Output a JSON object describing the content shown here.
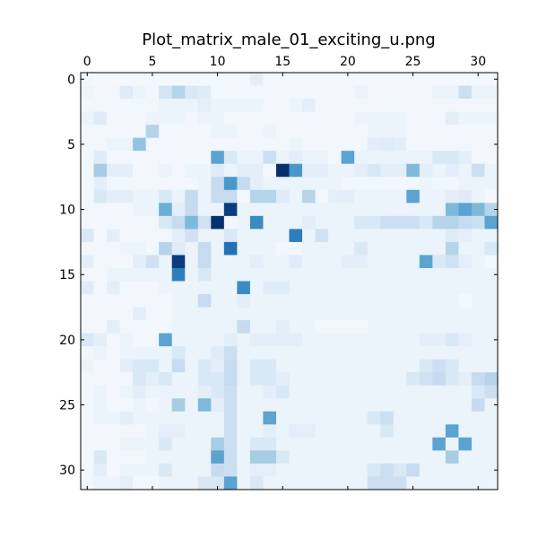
{
  "chart_data": {
    "type": "heatmap",
    "title": "Plot_matrix_male_01_exciting_u.png",
    "xlabel": "",
    "ylabel": "",
    "colormap": "Blues",
    "x_axis_position": "top",
    "xlim": [
      -0.5,
      31.5
    ],
    "ylim": [
      31.5,
      -0.5
    ],
    "x_ticks": [
      0,
      5,
      10,
      15,
      20,
      25,
      30
    ],
    "y_ticks": [
      0,
      5,
      10,
      15,
      20,
      25,
      30
    ],
    "vmin": 0,
    "vmax": 1,
    "rows": 32,
    "cols": 32,
    "values": [
      [
        0.03,
        0.02,
        0.02,
        0.02,
        0.02,
        0.02,
        0.02,
        0.02,
        0.02,
        0.02,
        0.02,
        0.02,
        0.02,
        0.1,
        0.02,
        0.02,
        0.02,
        0.02,
        0.02,
        0.02,
        0.02,
        0.02,
        0.02,
        0.02,
        0.02,
        0.02,
        0.02,
        0.02,
        0.02,
        0.02,
        0.02,
        0.02
      ],
      [
        0.05,
        0.03,
        0.03,
        0.12,
        0.06,
        0.03,
        0.18,
        0.3,
        0.15,
        0.12,
        0.03,
        0.03,
        0.03,
        0.03,
        0.03,
        0.03,
        0.03,
        0.03,
        0.03,
        0.03,
        0.03,
        0.06,
        0.03,
        0.03,
        0.03,
        0.03,
        0.03,
        0.06,
        0.06,
        0.22,
        0.06,
        0.06
      ],
      [
        0.03,
        0.03,
        0.03,
        0.03,
        0.03,
        0.03,
        0.06,
        0.06,
        0.06,
        0.1,
        0.06,
        0.06,
        0.06,
        0.06,
        0.03,
        0.03,
        0.06,
        0.1,
        0.03,
        0.03,
        0.03,
        0.03,
        0.03,
        0.03,
        0.03,
        0.03,
        0.03,
        0.03,
        0.03,
        0.03,
        0.03,
        0.03
      ],
      [
        0.06,
        0.12,
        0.03,
        0.03,
        0.03,
        0.06,
        0.06,
        0.06,
        0.03,
        0.06,
        0.06,
        0.03,
        0.03,
        0.03,
        0.03,
        0.03,
        0.03,
        0.03,
        0.03,
        0.03,
        0.03,
        0.06,
        0.06,
        0.06,
        0.06,
        0.03,
        0.03,
        0.03,
        0.1,
        0.06,
        0.06,
        0.06
      ],
      [
        0.03,
        0.03,
        0.03,
        0.03,
        0.03,
        0.3,
        0.03,
        0.03,
        0.03,
        0.03,
        0.06,
        0.06,
        0.03,
        0.03,
        0.06,
        0.03,
        0.03,
        0.03,
        0.03,
        0.03,
        0.03,
        0.03,
        0.06,
        0.06,
        0.06,
        0.03,
        0.03,
        0.03,
        0.03,
        0.03,
        0.03,
        0.03
      ],
      [
        0.03,
        0.03,
        0.06,
        0.06,
        0.4,
        0.03,
        0.03,
        0.03,
        0.03,
        0.03,
        0.03,
        0.03,
        0.03,
        0.03,
        0.03,
        0.03,
        0.06,
        0.03,
        0.03,
        0.03,
        0.03,
        0.03,
        0.1,
        0.12,
        0.1,
        0.03,
        0.03,
        0.03,
        0.03,
        0.03,
        0.03,
        0.03
      ],
      [
        0.03,
        0.12,
        0.03,
        0.03,
        0.03,
        0.03,
        0.03,
        0.03,
        0.03,
        0.03,
        0.55,
        0.15,
        0.06,
        0.06,
        0.22,
        0.06,
        0.1,
        0.06,
        0.06,
        0.03,
        0.55,
        0.06,
        0.06,
        0.06,
        0.06,
        0.06,
        0.06,
        0.15,
        0.15,
        0.1,
        0.03,
        0.03
      ],
      [
        0.03,
        0.35,
        0.1,
        0.1,
        0.03,
        0.03,
        0.06,
        0.03,
        0.06,
        0.06,
        0.12,
        0.06,
        0.1,
        0.1,
        0.03,
        1.0,
        0.6,
        0.1,
        0.1,
        0.06,
        0.06,
        0.1,
        0.15,
        0.1,
        0.1,
        0.45,
        0.1,
        0.06,
        0.1,
        0.06,
        0.22,
        0.06
      ],
      [
        0.03,
        0.1,
        0.03,
        0.03,
        0.03,
        0.03,
        0.03,
        0.03,
        0.03,
        0.06,
        0.25,
        0.6,
        0.25,
        0.1,
        0.06,
        0.06,
        0.06,
        0.06,
        0.06,
        0.06,
        0.03,
        0.03,
        0.03,
        0.03,
        0.03,
        0.03,
        0.06,
        0.03,
        0.03,
        0.06,
        0.06,
        0.06
      ],
      [
        0.03,
        0.15,
        0.1,
        0.1,
        0.06,
        0.06,
        0.15,
        0.06,
        0.25,
        0.06,
        0.25,
        0.25,
        0.03,
        0.3,
        0.3,
        0.12,
        0.06,
        0.3,
        0.03,
        0.1,
        0.1,
        0.06,
        0.06,
        0.06,
        0.06,
        0.55,
        0.06,
        0.06,
        0.1,
        0.12,
        0.06,
        0.03
      ],
      [
        0.03,
        0.03,
        0.03,
        0.03,
        0.06,
        0.06,
        0.5,
        0.1,
        0.25,
        0.06,
        0.06,
        0.95,
        0.06,
        0.06,
        0.06,
        0.06,
        0.06,
        0.06,
        0.06,
        0.06,
        0.06,
        0.06,
        0.06,
        0.06,
        0.06,
        0.06,
        0.06,
        0.06,
        0.45,
        0.55,
        0.45,
        0.3
      ],
      [
        0.03,
        0.03,
        0.03,
        0.03,
        0.03,
        0.03,
        0.15,
        0.25,
        0.45,
        0.2,
        1.0,
        0.03,
        0.06,
        0.65,
        0.06,
        0.06,
        0.06,
        0.1,
        0.06,
        0.06,
        0.06,
        0.15,
        0.15,
        0.22,
        0.22,
        0.22,
        0.15,
        0.3,
        0.3,
        0.25,
        0.22,
        0.55
      ],
      [
        0.15,
        0.03,
        0.1,
        0.03,
        0.03,
        0.03,
        0.03,
        0.1,
        0.2,
        0.06,
        0.06,
        0.15,
        0.06,
        0.06,
        0.06,
        0.06,
        0.7,
        0.06,
        0.2,
        0.06,
        0.06,
        0.06,
        0.06,
        0.06,
        0.06,
        0.06,
        0.06,
        0.06,
        0.12,
        0.1,
        0.06,
        0.06
      ],
      [
        0.03,
        0.03,
        0.03,
        0.06,
        0.06,
        0.03,
        0.3,
        0.12,
        0.06,
        0.25,
        0.06,
        0.75,
        0.06,
        0.06,
        0.06,
        0.03,
        0.03,
        0.06,
        0.06,
        0.06,
        0.06,
        0.15,
        0.06,
        0.06,
        0.06,
        0.06,
        0.06,
        0.06,
        0.3,
        0.06,
        0.06,
        0.15
      ],
      [
        0.1,
        0.03,
        0.03,
        0.03,
        0.1,
        0.2,
        0.06,
        0.95,
        0.06,
        0.25,
        0.06,
        0.06,
        0.06,
        0.1,
        0.06,
        0.06,
        0.12,
        0.06,
        0.06,
        0.06,
        0.1,
        0.1,
        0.06,
        0.06,
        0.06,
        0.06,
        0.55,
        0.15,
        0.2,
        0.1,
        0.06,
        0.03
      ],
      [
        0.03,
        0.03,
        0.06,
        0.06,
        0.06,
        0.06,
        0.06,
        0.7,
        0.06,
        0.15,
        0.06,
        0.06,
        0.06,
        0.06,
        0.06,
        0.06,
        0.06,
        0.06,
        0.06,
        0.06,
        0.06,
        0.06,
        0.06,
        0.06,
        0.06,
        0.06,
        0.06,
        0.06,
        0.06,
        0.06,
        0.06,
        0.06
      ],
      [
        0.12,
        0.03,
        0.1,
        0.03,
        0.03,
        0.03,
        0.06,
        0.06,
        0.06,
        0.06,
        0.06,
        0.06,
        0.65,
        0.06,
        0.12,
        0.12,
        0.06,
        0.06,
        0.06,
        0.06,
        0.06,
        0.06,
        0.06,
        0.06,
        0.06,
        0.06,
        0.06,
        0.06,
        0.06,
        0.06,
        0.06,
        0.06
      ],
      [
        0.03,
        0.03,
        0.03,
        0.03,
        0.03,
        0.03,
        0.03,
        0.06,
        0.06,
        0.25,
        0.06,
        0.06,
        0.1,
        0.06,
        0.06,
        0.06,
        0.06,
        0.06,
        0.06,
        0.06,
        0.06,
        0.06,
        0.06,
        0.06,
        0.06,
        0.06,
        0.06,
        0.06,
        0.06,
        0.03,
        0.06,
        0.06
      ],
      [
        0.03,
        0.03,
        0.03,
        0.03,
        0.1,
        0.03,
        0.03,
        0.06,
        0.06,
        0.06,
        0.06,
        0.06,
        0.06,
        0.06,
        0.06,
        0.06,
        0.06,
        0.06,
        0.06,
        0.06,
        0.06,
        0.06,
        0.06,
        0.06,
        0.06,
        0.06,
        0.06,
        0.06,
        0.06,
        0.06,
        0.06,
        0.06
      ],
      [
        0.03,
        0.03,
        0.1,
        0.03,
        0.03,
        0.03,
        0.03,
        0.06,
        0.06,
        0.06,
        0.06,
        0.06,
        0.25,
        0.06,
        0.06,
        0.1,
        0.06,
        0.06,
        0.03,
        0.03,
        0.03,
        0.03,
        0.06,
        0.06,
        0.06,
        0.06,
        0.06,
        0.06,
        0.06,
        0.06,
        0.06,
        0.06
      ],
      [
        0.15,
        0.1,
        0.03,
        0.06,
        0.03,
        0.03,
        0.55,
        0.06,
        0.06,
        0.06,
        0.06,
        0.1,
        0.06,
        0.1,
        0.1,
        0.1,
        0.1,
        0.06,
        0.06,
        0.06,
        0.06,
        0.06,
        0.06,
        0.06,
        0.06,
        0.06,
        0.1,
        0.1,
        0.15,
        0.1,
        0.06,
        0.06
      ],
      [
        0.03,
        0.06,
        0.03,
        0.06,
        0.06,
        0.06,
        0.06,
        0.15,
        0.06,
        0.06,
        0.12,
        0.22,
        0.06,
        0.06,
        0.06,
        0.06,
        0.06,
        0.06,
        0.06,
        0.06,
        0.06,
        0.06,
        0.06,
        0.06,
        0.06,
        0.06,
        0.06,
        0.06,
        0.06,
        0.06,
        0.06,
        0.06
      ],
      [
        0.06,
        0.03,
        0.03,
        0.1,
        0.15,
        0.15,
        0.06,
        0.25,
        0.06,
        0.15,
        0.1,
        0.25,
        0.06,
        0.15,
        0.15,
        0.06,
        0.06,
        0.06,
        0.06,
        0.06,
        0.06,
        0.06,
        0.06,
        0.06,
        0.06,
        0.06,
        0.15,
        0.22,
        0.15,
        0.06,
        0.06,
        0.06
      ],
      [
        0.03,
        0.03,
        0.03,
        0.03,
        0.15,
        0.1,
        0.15,
        0.06,
        0.06,
        0.15,
        0.15,
        0.25,
        0.06,
        0.15,
        0.15,
        0.1,
        0.06,
        0.06,
        0.06,
        0.06,
        0.06,
        0.06,
        0.06,
        0.06,
        0.06,
        0.15,
        0.2,
        0.25,
        0.15,
        0.1,
        0.25,
        0.3
      ],
      [
        0.03,
        0.06,
        0.03,
        0.06,
        0.1,
        0.06,
        0.06,
        0.06,
        0.06,
        0.1,
        0.15,
        0.22,
        0.06,
        0.06,
        0.1,
        0.15,
        0.06,
        0.06,
        0.06,
        0.06,
        0.06,
        0.06,
        0.06,
        0.06,
        0.06,
        0.06,
        0.06,
        0.06,
        0.06,
        0.06,
        0.15,
        0.22
      ],
      [
        0.03,
        0.06,
        0.03,
        0.03,
        0.06,
        0.03,
        0.06,
        0.35,
        0.06,
        0.45,
        0.1,
        0.22,
        0.06,
        0.06,
        0.06,
        0.06,
        0.06,
        0.06,
        0.06,
        0.06,
        0.06,
        0.06,
        0.06,
        0.06,
        0.06,
        0.06,
        0.06,
        0.06,
        0.06,
        0.06,
        0.25,
        0.06
      ],
      [
        0.03,
        0.06,
        0.06,
        0.1,
        0.06,
        0.06,
        0.06,
        0.06,
        0.06,
        0.06,
        0.06,
        0.22,
        0.06,
        0.06,
        0.55,
        0.06,
        0.06,
        0.06,
        0.06,
        0.06,
        0.06,
        0.06,
        0.15,
        0.22,
        0.06,
        0.06,
        0.06,
        0.06,
        0.06,
        0.06,
        0.06,
        0.06
      ],
      [
        0.03,
        0.03,
        0.03,
        0.03,
        0.03,
        0.06,
        0.1,
        0.1,
        0.06,
        0.06,
        0.06,
        0.22,
        0.06,
        0.06,
        0.1,
        0.06,
        0.1,
        0.1,
        0.06,
        0.06,
        0.06,
        0.06,
        0.06,
        0.15,
        0.06,
        0.06,
        0.06,
        0.06,
        0.55,
        0.06,
        0.06,
        0.06
      ],
      [
        0.03,
        0.03,
        0.03,
        0.06,
        0.06,
        0.06,
        0.15,
        0.06,
        0.06,
        0.06,
        0.35,
        0.22,
        0.06,
        0.15,
        0.15,
        0.06,
        0.06,
        0.06,
        0.06,
        0.06,
        0.06,
        0.06,
        0.06,
        0.06,
        0.06,
        0.06,
        0.06,
        0.55,
        0.06,
        0.55,
        0.06,
        0.06
      ],
      [
        0.03,
        0.15,
        0.03,
        0.03,
        0.03,
        0.06,
        0.06,
        0.06,
        0.06,
        0.06,
        0.55,
        0.22,
        0.06,
        0.35,
        0.35,
        0.15,
        0.06,
        0.06,
        0.06,
        0.06,
        0.06,
        0.06,
        0.06,
        0.06,
        0.06,
        0.06,
        0.06,
        0.06,
        0.35,
        0.06,
        0.06,
        0.06
      ],
      [
        0.03,
        0.1,
        0.03,
        0.06,
        0.06,
        0.06,
        0.15,
        0.06,
        0.06,
        0.06,
        0.25,
        0.22,
        0.06,
        0.1,
        0.1,
        0.06,
        0.06,
        0.06,
        0.06,
        0.06,
        0.06,
        0.06,
        0.15,
        0.22,
        0.15,
        0.25,
        0.06,
        0.06,
        0.06,
        0.06,
        0.06,
        0.06
      ],
      [
        0.03,
        0.06,
        0.06,
        0.1,
        0.03,
        0.03,
        0.06,
        0.06,
        0.06,
        0.15,
        0.15,
        0.55,
        0.06,
        0.15,
        0.06,
        0.06,
        0.06,
        0.06,
        0.06,
        0.06,
        0.06,
        0.06,
        0.22,
        0.22,
        0.22,
        0.06,
        0.06,
        0.06,
        0.06,
        0.06,
        0.06,
        0.06
      ]
    ]
  }
}
